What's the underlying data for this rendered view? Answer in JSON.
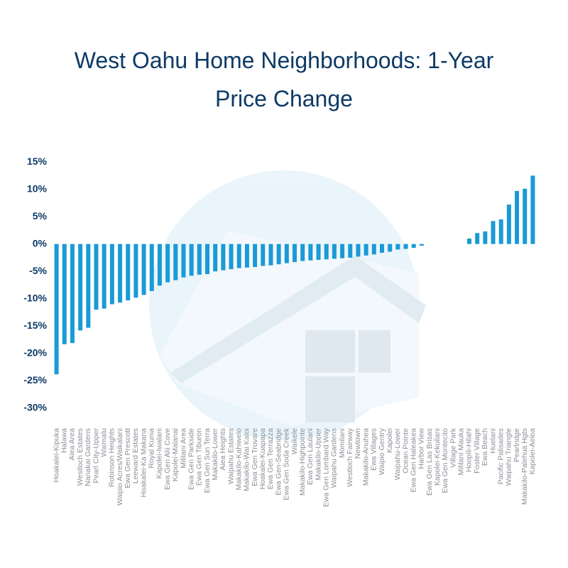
{
  "chart_data": {
    "type": "bar",
    "title": "West Oahu Home Neighborhoods: 1-Year Price Change",
    "color": "#1a9ad6",
    "categories": [
      "Hoakalei-Kipuka",
      "Halawa",
      "Aiea Area",
      "Westloch Estates",
      "Nanakai Gardens",
      "Pearl City-Upper",
      "Waimalu",
      "Robinson Heights",
      "Waipio Acres/Waikalani",
      "Ewa Gen Prescott",
      "Leeward Estates",
      "Hoakalei-Ka Makana",
      "Royal Kunia",
      "Kapolei-Iwalani",
      "Ewa Gen Alii Cove",
      "Kapolei-Malanai",
      "Mililani Area",
      "Ewa Gen Parkside",
      "Ewa Gen Tiburon",
      "Ewa Gen Sun Terra",
      "Makakilo-Lower",
      "Aiea Heights",
      "Waipahu Estates",
      "Makakilo-Kahiwelo",
      "Makakilo-Wai Kaloi",
      "Ewa Gen Trovare",
      "Hoakalei-Kuapapa",
      "Ewa Gen Terrazza",
      "Ewa Gen-Seabridge",
      "Ewa Gen Soda Creek",
      "Waikele",
      "Makakilo-Highpointe",
      "Ewa Gen Laulani",
      "Makakilo-Upper",
      "Ewa Gen Lombard Way",
      "Waipahu Gardens",
      "Momilani",
      "Westloch Fairway",
      "Newtown",
      "Makakilo-Anuhea",
      "Ewa Villages",
      "Waipio Gentry",
      "Kapolei",
      "Waipahu-Lower",
      "Ocean Pointe",
      "Ewa Gen Haleakea",
      "Harbor View",
      "Ewa Gen Las Brisas",
      "Kapolei-Kekuilani",
      "Ewa Gen Montecito",
      "Village Park",
      "Mililani Mauka",
      "Hoopili-Hilahi",
      "Foster Village",
      "Ewa Beach",
      "Huelani",
      "Pacific Palisades",
      "Waipahu Triangle",
      "Pearlridge",
      "Makakilo-Palehua Hgts",
      "Kapolei-Aeloa"
    ],
    "values": [
      -23.8,
      -18.3,
      -18.1,
      -15.8,
      -15.3,
      -12.0,
      -11.8,
      -11.0,
      -10.7,
      -10.3,
      -9.8,
      -9.3,
      -8.6,
      -7.6,
      -7.0,
      -6.6,
      -6.1,
      -5.8,
      -5.6,
      -5.5,
      -5.0,
      -4.8,
      -4.6,
      -4.4,
      -4.3,
      -4.2,
      -4.0,
      -3.9,
      -3.7,
      -3.5,
      -3.3,
      -3.1,
      -3.0,
      -2.9,
      -2.8,
      -2.7,
      -2.6,
      -2.5,
      -2.3,
      -2.1,
      -1.9,
      -1.6,
      -1.4,
      -1.0,
      -0.9,
      -0.7,
      -0.3,
      0,
      0,
      0,
      0,
      0,
      1.0,
      2.0,
      2.3,
      4.2,
      4.5,
      7.2,
      9.7,
      10.1,
      12.5
    ],
    "ylim": [
      -31.5,
      16.5
    ],
    "yticks": [
      {
        "value": 15,
        "label": "15%"
      },
      {
        "value": 10,
        "label": "10%"
      },
      {
        "value": 5,
        "label": "5%"
      },
      {
        "value": 0,
        "label": "0%"
      },
      {
        "value": -5,
        "label": "-5%"
      },
      {
        "value": -10,
        "label": "-10%"
      },
      {
        "value": -15,
        "label": "-15%"
      },
      {
        "value": -20,
        "label": "-20%"
      },
      {
        "value": -25,
        "label": "-25%"
      },
      {
        "value": -30,
        "label": "-30%"
      }
    ],
    "grid": false
  }
}
